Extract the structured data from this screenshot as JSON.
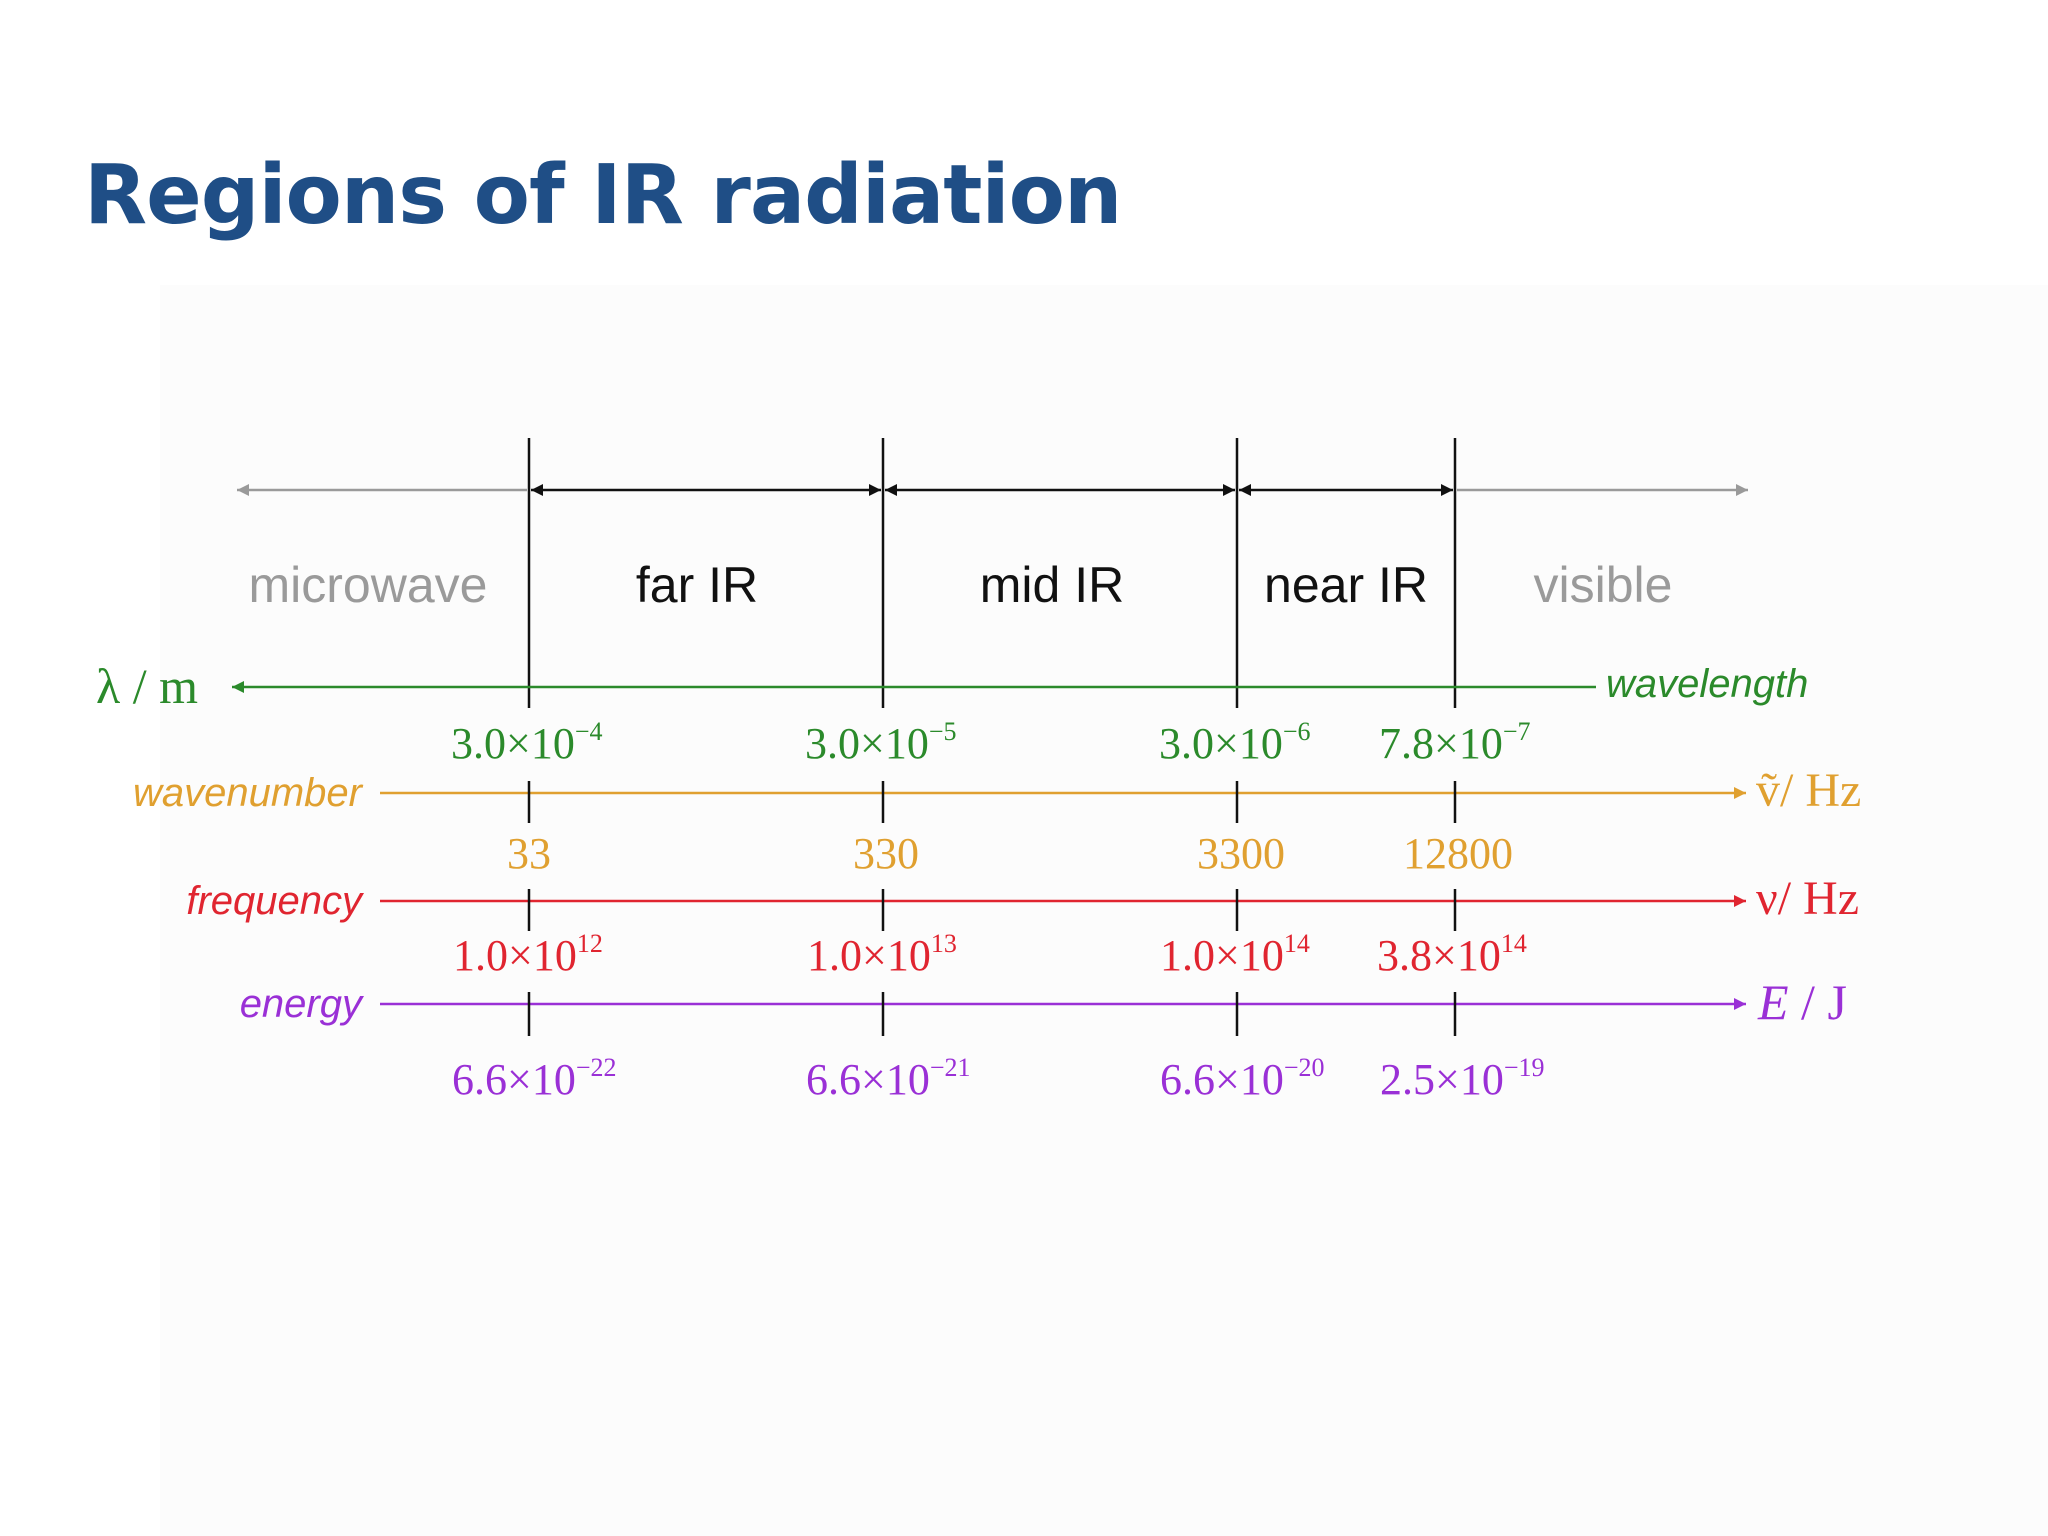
{
  "title": "Regions of IR radiation",
  "colors": {
    "title": "#1f4e86",
    "wavelength": "#2b8a2b",
    "wavenumber": "#e0a030",
    "frequency": "#e02530",
    "energy": "#9a30d6",
    "region_inactive": "#9a9a9a",
    "region_active": "#111111"
  },
  "regions": [
    "microwave",
    "far IR",
    "mid IR",
    "near IR",
    "visible"
  ],
  "axes": {
    "wavelength": {
      "name": "wavelength",
      "unit_symbol": "λ",
      "unit_sep": " / ",
      "unit": "m",
      "ticks": [
        {
          "mant": "3.0×10",
          "exp": "−4"
        },
        {
          "mant": "3.0×10",
          "exp": "−5"
        },
        {
          "mant": "3.0×10",
          "exp": "−6"
        },
        {
          "mant": "7.8×10",
          "exp": "−7"
        }
      ]
    },
    "wavenumber": {
      "name": "wavenumber",
      "unit_symbol": "ṽ",
      "unit_sep": "/ ",
      "unit": "Hz",
      "ticks": [
        {
          "mant": "33",
          "exp": ""
        },
        {
          "mant": "330",
          "exp": ""
        },
        {
          "mant": "3300",
          "exp": ""
        },
        {
          "mant": "12800",
          "exp": ""
        }
      ]
    },
    "frequency": {
      "name": "frequency",
      "unit_symbol": "ν",
      "unit_sep": "/ ",
      "unit": "Hz",
      "ticks": [
        {
          "mant": "1.0×10",
          "exp": "12"
        },
        {
          "mant": "1.0×10",
          "exp": "13"
        },
        {
          "mant": "1.0×10",
          "exp": "14"
        },
        {
          "mant": "3.8×10",
          "exp": "14"
        }
      ]
    },
    "energy": {
      "name": "energy",
      "unit_symbol": "E",
      "unit_sep": " / ",
      "unit": "J",
      "ticks": [
        {
          "mant": "6.6×10",
          "exp": "−22"
        },
        {
          "mant": "6.6×10",
          "exp": "−21"
        },
        {
          "mant": "6.6×10",
          "exp": "−20"
        },
        {
          "mant": "2.5×10",
          "exp": "−19"
        }
      ]
    }
  }
}
